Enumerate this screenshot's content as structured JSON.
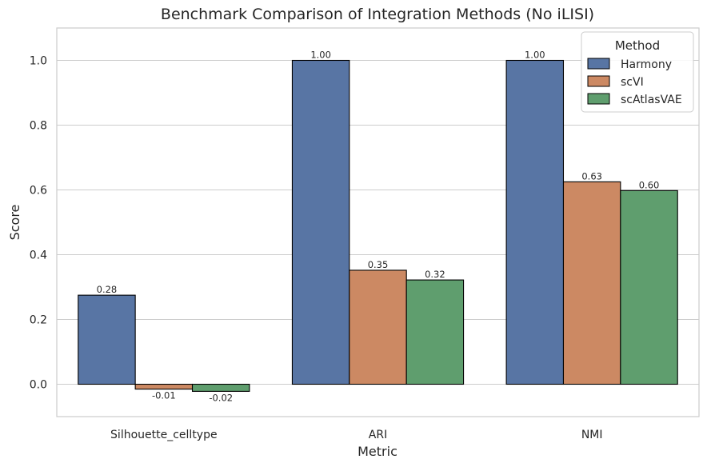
{
  "chart_data": {
    "type": "bar",
    "title": "Benchmark Comparison of Integration Methods (No iLISI)",
    "xlabel": "Metric",
    "ylabel": "Score",
    "categories": [
      "Silhouette_celltype",
      "ARI",
      "NMI"
    ],
    "series": [
      {
        "name": "Harmony",
        "values": [
          0.275,
          1.0,
          1.0
        ],
        "labels": [
          "0.28",
          "1.00",
          "1.00"
        ],
        "color": "#5875a4"
      },
      {
        "name": "scVI",
        "values": [
          -0.015,
          0.352,
          0.625
        ],
        "labels": [
          "-0.01",
          "0.35",
          "0.63"
        ],
        "color": "#cc8963"
      },
      {
        "name": "scAtlasVAE",
        "values": [
          -0.022,
          0.322,
          0.598
        ],
        "labels": [
          "-0.02",
          "0.32",
          "0.60"
        ],
        "color": "#5f9e6e"
      }
    ],
    "ylim": [
      -0.1,
      1.1
    ],
    "yticks": [
      "0.0",
      "0.2",
      "0.4",
      "0.6",
      "0.8",
      "1.0"
    ],
    "grid": true,
    "legend": {
      "title": "Method",
      "placement": "top-right"
    }
  }
}
